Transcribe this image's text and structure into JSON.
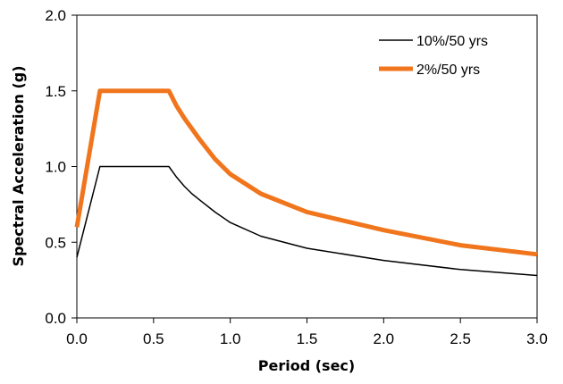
{
  "chart_data": {
    "type": "line",
    "title": "",
    "xlabel": "Period (sec)",
    "ylabel": "Spectral Acceleration (g)",
    "xlim": [
      0,
      3
    ],
    "ylim": [
      0,
      2
    ],
    "x_ticks": [
      "0.0",
      "0.5",
      "1.0",
      "1.5",
      "2.0",
      "2.5",
      "3.0"
    ],
    "y_ticks": [
      "0.0",
      "0.5",
      "1.0",
      "1.5",
      "2.0"
    ],
    "grid": false,
    "legend_position": "top-right",
    "series": [
      {
        "name": "10%/50 yrs",
        "color": "#000000",
        "x": [
          0.0,
          0.15,
          0.6,
          0.65,
          0.7,
          0.75,
          0.8,
          0.9,
          1.0,
          1.2,
          1.5,
          2.0,
          2.5,
          3.0
        ],
        "y": [
          0.4,
          1.0,
          1.0,
          0.93,
          0.87,
          0.82,
          0.78,
          0.7,
          0.63,
          0.54,
          0.46,
          0.38,
          0.32,
          0.28
        ]
      },
      {
        "name": "2%/50 yrs",
        "color": "#F0751C",
        "x": [
          0.0,
          0.15,
          0.6,
          0.65,
          0.7,
          0.8,
          0.9,
          1.0,
          1.2,
          1.5,
          2.0,
          2.5,
          3.0
        ],
        "y": [
          0.6,
          1.5,
          1.5,
          1.4,
          1.32,
          1.18,
          1.05,
          0.95,
          0.82,
          0.7,
          0.58,
          0.48,
          0.42
        ]
      }
    ]
  }
}
